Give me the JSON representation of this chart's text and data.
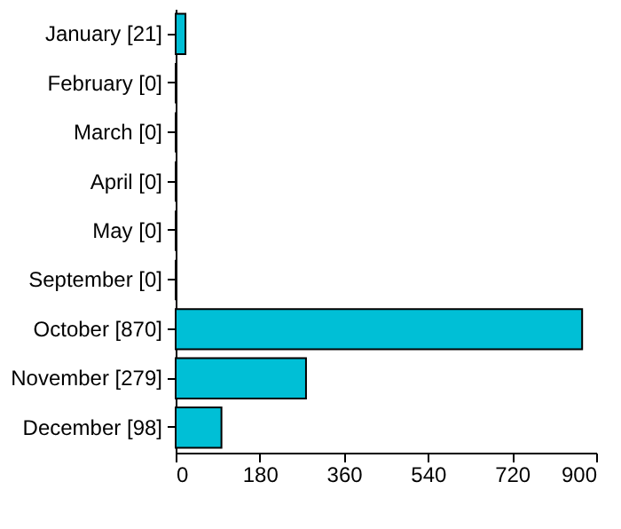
{
  "chart_data": {
    "type": "bar",
    "orientation": "horizontal",
    "categories": [
      "January [21]",
      "February [0]",
      "March [0]",
      "April [0]",
      "May [0]",
      "September [0]",
      "October [870]",
      "November [279]",
      "December [98]"
    ],
    "values": [
      21,
      0,
      0,
      0,
      0,
      0,
      870,
      279,
      98
    ],
    "color": "#00bfd6",
    "xlim": [
      0,
      900
    ],
    "xticks": [
      0,
      180,
      360,
      540,
      720,
      900
    ],
    "grid": false
  }
}
